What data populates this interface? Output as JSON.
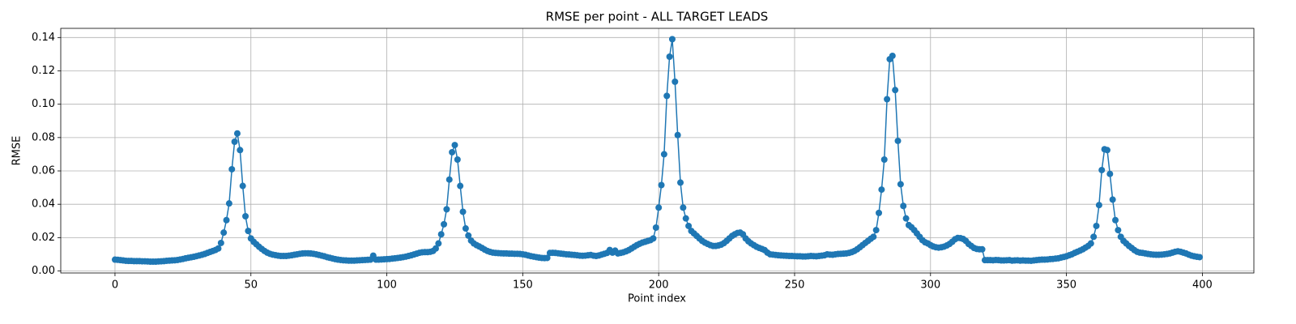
{
  "chart_data": {
    "type": "line",
    "title": "RMSE per point - ALL TARGET LEADS",
    "x_label": "Point index",
    "y_label": "RMSE",
    "x": [
      0,
      1,
      2,
      3,
      4,
      5,
      6,
      7,
      8,
      9,
      10,
      11,
      12,
      13,
      14,
      15,
      16,
      17,
      18,
      19,
      20,
      21,
      22,
      23,
      24,
      25,
      26,
      27,
      28,
      29,
      30,
      31,
      32,
      33,
      34,
      35,
      36,
      37,
      38,
      39,
      40,
      41,
      42,
      43,
      44,
      45,
      46,
      47,
      48,
      49,
      50,
      51,
      52,
      53,
      54,
      55,
      56,
      57,
      58,
      59,
      60,
      61,
      62,
      63,
      64,
      65,
      66,
      67,
      68,
      69,
      70,
      71,
      72,
      73,
      74,
      75,
      76,
      77,
      78,
      79,
      80,
      81,
      82,
      83,
      84,
      85,
      86,
      87,
      88,
      89,
      90,
      91,
      92,
      93,
      94,
      95,
      96,
      97,
      98,
      99,
      100,
      101,
      102,
      103,
      104,
      105,
      106,
      107,
      108,
      109,
      110,
      111,
      112,
      113,
      114,
      115,
      116,
      117,
      118,
      119,
      120,
      121,
      122,
      123,
      124,
      125,
      126,
      127,
      128,
      129,
      130,
      131,
      132,
      133,
      134,
      135,
      136,
      137,
      138,
      139,
      140,
      141,
      142,
      143,
      144,
      145,
      146,
      147,
      148,
      149,
      150,
      151,
      152,
      153,
      154,
      155,
      156,
      157,
      158,
      159,
      160,
      161,
      162,
      163,
      164,
      165,
      166,
      167,
      168,
      169,
      170,
      171,
      172,
      173,
      174,
      175,
      176,
      177,
      178,
      179,
      180,
      181,
      182,
      183,
      184,
      185,
      186,
      187,
      188,
      189,
      190,
      191,
      192,
      193,
      194,
      195,
      196,
      197,
      198,
      199,
      200,
      201,
      202,
      203,
      204,
      205,
      206,
      207,
      208,
      209,
      210,
      211,
      212,
      213,
      214,
      215,
      216,
      217,
      218,
      219,
      220,
      221,
      222,
      223,
      224,
      225,
      226,
      227,
      228,
      229,
      230,
      231,
      232,
      233,
      234,
      235,
      236,
      237,
      238,
      239,
      240,
      241,
      242,
      243,
      244,
      245,
      246,
      247,
      248,
      249,
      250,
      251,
      252,
      253,
      254,
      255,
      256,
      257,
      258,
      259,
      260,
      261,
      262,
      263,
      264,
      265,
      266,
      267,
      268,
      269,
      270,
      271,
      272,
      273,
      274,
      275,
      276,
      277,
      278,
      279,
      280,
      281,
      282,
      283,
      284,
      285,
      286,
      287,
      288,
      289,
      290,
      291,
      292,
      293,
      294,
      295,
      296,
      297,
      298,
      299,
      300,
      301,
      302,
      303,
      304,
      305,
      306,
      307,
      308,
      309,
      310,
      311,
      312,
      313,
      314,
      315,
      316,
      317,
      318,
      319,
      320,
      321,
      322,
      323,
      324,
      325,
      326,
      327,
      328,
      329,
      330,
      331,
      332,
      333,
      334,
      335,
      336,
      337,
      338,
      339,
      340,
      341,
      342,
      343,
      344,
      345,
      346,
      347,
      348,
      349,
      350,
      351,
      352,
      353,
      354,
      355,
      356,
      357,
      358,
      359,
      360,
      361,
      362,
      363,
      364,
      365,
      366,
      367,
      368,
      369,
      370,
      371,
      372,
      373,
      374,
      375,
      376,
      377,
      378,
      379,
      380,
      381,
      382,
      383,
      384,
      385,
      386,
      387,
      388,
      389,
      390,
      391,
      392,
      393,
      394,
      395,
      396,
      397,
      398,
      399
    ],
    "values": [
      0.0068,
      0.0067,
      0.0065,
      0.0063,
      0.0061,
      0.006,
      0.006,
      0.0059,
      0.0059,
      0.0059,
      0.0058,
      0.0058,
      0.0057,
      0.0056,
      0.0056,
      0.0056,
      0.0057,
      0.0058,
      0.0059,
      0.0061,
      0.0062,
      0.0063,
      0.0064,
      0.0066,
      0.0069,
      0.0072,
      0.0076,
      0.0079,
      0.0082,
      0.0085,
      0.0089,
      0.0093,
      0.0097,
      0.0102,
      0.0108,
      0.0114,
      0.012,
      0.0126,
      0.0135,
      0.0168,
      0.023,
      0.0305,
      0.0405,
      0.061,
      0.0775,
      0.0825,
      0.0725,
      0.051,
      0.0328,
      0.024,
      0.0195,
      0.0175,
      0.016,
      0.0145,
      0.0132,
      0.012,
      0.011,
      0.0103,
      0.0098,
      0.0095,
      0.0092,
      0.009,
      0.009,
      0.009,
      0.0092,
      0.0094,
      0.0097,
      0.01,
      0.0103,
      0.0105,
      0.0106,
      0.0106,
      0.0105,
      0.0103,
      0.01,
      0.0096,
      0.0092,
      0.0088,
      0.0083,
      0.0079,
      0.0075,
      0.0071,
      0.0068,
      0.0066,
      0.0064,
      0.0063,
      0.0062,
      0.0062,
      0.0062,
      0.0063,
      0.0064,
      0.0065,
      0.0066,
      0.0067,
      0.0068,
      0.0092,
      0.0068,
      0.0068,
      0.0069,
      0.007,
      0.0071,
      0.0072,
      0.0074,
      0.0076,
      0.0078,
      0.008,
      0.0083,
      0.0086,
      0.009,
      0.0094,
      0.0099,
      0.0104,
      0.0109,
      0.0112,
      0.0113,
      0.0113,
      0.0115,
      0.012,
      0.0135,
      0.0165,
      0.022,
      0.028,
      0.037,
      0.0548,
      0.0712,
      0.0755,
      0.0668,
      0.051,
      0.0355,
      0.0255,
      0.0212,
      0.0182,
      0.0165,
      0.0155,
      0.0147,
      0.0138,
      0.0128,
      0.012,
      0.0114,
      0.011,
      0.0108,
      0.0107,
      0.0106,
      0.0105,
      0.0105,
      0.0104,
      0.0104,
      0.0103,
      0.0103,
      0.0102,
      0.01,
      0.0097,
      0.0093,
      0.0089,
      0.0086,
      0.0083,
      0.008,
      0.0078,
      0.0077,
      0.0078,
      0.0108,
      0.0109,
      0.0108,
      0.0106,
      0.0104,
      0.0102,
      0.01,
      0.0099,
      0.0097,
      0.0096,
      0.0094,
      0.0092,
      0.0091,
      0.0092,
      0.0094,
      0.0096,
      0.0092,
      0.009,
      0.0093,
      0.0098,
      0.0103,
      0.0108,
      0.0126,
      0.011,
      0.0122,
      0.0105,
      0.0108,
      0.0112,
      0.0118,
      0.0125,
      0.0135,
      0.0145,
      0.0155,
      0.0163,
      0.017,
      0.0175,
      0.018,
      0.0185,
      0.0195,
      0.026,
      0.038,
      0.0515,
      0.07,
      0.105,
      0.1285,
      0.139,
      0.1135,
      0.0815,
      0.053,
      0.038,
      0.0315,
      0.027,
      0.024,
      0.0225,
      0.021,
      0.0195,
      0.018,
      0.017,
      0.0162,
      0.0155,
      0.015,
      0.015,
      0.0153,
      0.0158,
      0.0167,
      0.018,
      0.0195,
      0.021,
      0.022,
      0.0228,
      0.023,
      0.022,
      0.0195,
      0.0178,
      0.0165,
      0.0155,
      0.0145,
      0.0138,
      0.0132,
      0.0125,
      0.011,
      0.01,
      0.0098,
      0.0096,
      0.0094,
      0.0093,
      0.0092,
      0.0091,
      0.009,
      0.009,
      0.0089,
      0.0088,
      0.0088,
      0.0087,
      0.0087,
      0.0088,
      0.009,
      0.0089,
      0.0088,
      0.009,
      0.0092,
      0.0094,
      0.01,
      0.0098,
      0.0097,
      0.01,
      0.0102,
      0.0103,
      0.0104,
      0.0105,
      0.0108,
      0.0113,
      0.012,
      0.013,
      0.0142,
      0.0155,
      0.0168,
      0.018,
      0.0193,
      0.0205,
      0.0245,
      0.0348,
      0.0488,
      0.0668,
      0.103,
      0.127,
      0.129,
      0.1085,
      0.078,
      0.052,
      0.039,
      0.0315,
      0.0275,
      0.0262,
      0.0245,
      0.0225,
      0.0205,
      0.0185,
      0.0172,
      0.0165,
      0.0155,
      0.0147,
      0.0142,
      0.014,
      0.0142,
      0.0146,
      0.0153,
      0.0162,
      0.0175,
      0.019,
      0.0198,
      0.0197,
      0.0192,
      0.018,
      0.0162,
      0.015,
      0.0138,
      0.0132,
      0.013,
      0.013,
      0.0065,
      0.0065,
      0.0065,
      0.0064,
      0.0066,
      0.0065,
      0.0063,
      0.0063,
      0.0064,
      0.0065,
      0.0062,
      0.0063,
      0.0064,
      0.0062,
      0.0063,
      0.0062,
      0.0062,
      0.0061,
      0.0063,
      0.0065,
      0.0067,
      0.0068,
      0.0068,
      0.0069,
      0.0071,
      0.0072,
      0.0074,
      0.0076,
      0.008,
      0.0084,
      0.0088,
      0.0094,
      0.01,
      0.0108,
      0.0115,
      0.0122,
      0.013,
      0.014,
      0.015,
      0.0165,
      0.0205,
      0.027,
      0.0395,
      0.0605,
      0.073,
      0.0725,
      0.0582,
      0.0428,
      0.0305,
      0.0245,
      0.0205,
      0.018,
      0.0165,
      0.015,
      0.0138,
      0.0125,
      0.0115,
      0.011,
      0.0108,
      0.0105,
      0.0102,
      0.01,
      0.0098,
      0.0097,
      0.0097,
      0.0098,
      0.01,
      0.0102,
      0.0105,
      0.011,
      0.0115,
      0.0118,
      0.0115,
      0.011,
      0.0105,
      0.0098,
      0.0092,
      0.0088,
      0.0085,
      0.0083
    ],
    "color": "#1f77b4",
    "xlim": [
      -19.95,
      418.95
    ],
    "xticks": [
      0,
      50,
      100,
      150,
      200,
      250,
      300,
      350,
      400
    ],
    "ylim": [
      -0.0012,
      0.1455
    ],
    "yticks": [
      {
        "value": 0,
        "label": "0.00"
      },
      0.02,
      0.04,
      0.06,
      0.08,
      {
        "value": 0.1,
        "label": "0.10"
      },
      0.12,
      0.14
    ],
    "grid": true,
    "markers": true
  }
}
